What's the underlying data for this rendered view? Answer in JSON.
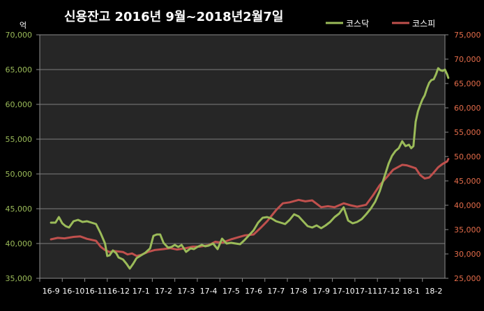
{
  "chart_data": {
    "type": "line",
    "title": "신용잔고  2016년 9월~2018년2월7일",
    "left_axis_unit": "억",
    "left_axis": {
      "min": 35000,
      "max": 70000,
      "ticks": [
        "35,000",
        "40,000",
        "45,000",
        "50,000",
        "55,000",
        "60,000",
        "65,000",
        "70,000"
      ]
    },
    "right_axis": {
      "min": 25000,
      "max": 75000,
      "ticks": [
        "25,000",
        "30,000",
        "35,000",
        "40,000",
        "45,000",
        "50,000",
        "55,000",
        "60,000",
        "65,000",
        "70,000",
        "75,000"
      ]
    },
    "x_labels": [
      "16-9",
      "16-10",
      "16-11",
      "16-12",
      "17-1",
      "17-2",
      "17-3",
      "17-4",
      "17-5",
      "17-6",
      "17-7",
      "17-8",
      "17-9",
      "17-10",
      "17-11",
      "17-12",
      "18-1",
      "18-2"
    ],
    "grid": true,
    "legend_position": "top-right",
    "colors": {
      "kosdaq": "#9bbb59",
      "kospi": "#c0504d",
      "grid": "#7f7f7f",
      "left_tick": "#9bbb59",
      "right_tick": "#e46c4a",
      "x_tick": "#ffffff",
      "plot_bg": "#262626"
    },
    "series": [
      {
        "name": "코스닥",
        "axis": "left",
        "x": [
          0,
          0.2,
          0.35,
          0.5,
          0.65,
          0.8,
          1,
          1.2,
          1.4,
          1.6,
          1.8,
          2,
          2.2,
          2.4,
          2.5,
          2.6,
          2.75,
          2.9,
          3,
          3.2,
          3.35,
          3.5,
          3.65,
          3.8,
          4,
          4.2,
          4.4,
          4.55,
          4.7,
          4.85,
          5,
          5.2,
          5.35,
          5.5,
          5.65,
          5.8,
          6,
          6.2,
          6.35,
          6.5,
          6.7,
          6.85,
          7,
          7.2,
          7.4,
          7.6,
          7.8,
          8,
          8.2,
          8.4,
          8.6,
          8.8,
          9,
          9.2,
          9.4,
          9.6,
          9.8,
          10,
          10.2,
          10.4,
          10.6,
          10.8,
          11,
          11.2,
          11.4,
          11.6,
          11.8,
          12,
          12.2,
          12.4,
          12.6,
          12.8,
          13,
          13.2,
          13.4,
          13.6,
          13.8,
          14,
          14.2,
          14.4,
          14.6,
          14.8,
          15,
          15.15,
          15.3,
          15.45,
          15.6,
          15.75,
          15.9,
          16,
          16.1,
          16.2,
          16.3,
          16.4,
          16.5,
          16.6,
          16.7,
          16.8,
          16.9,
          17,
          17.1,
          17.2,
          17.3,
          17.4,
          17.5,
          17.6,
          17.65
        ],
        "values": [
          43000,
          43000,
          43800,
          42900,
          42500,
          42300,
          43200,
          43400,
          43100,
          43200,
          43000,
          42800,
          41500,
          40000,
          38200,
          38300,
          39000,
          38600,
          38000,
          37700,
          37100,
          36400,
          37100,
          37900,
          38300,
          38700,
          39300,
          41100,
          41300,
          41300,
          40100,
          39400,
          39500,
          39800,
          39500,
          39800,
          38800,
          39300,
          39200,
          39500,
          39800,
          39600,
          39700,
          40000,
          39200,
          40700,
          40000,
          40100,
          40000,
          39900,
          40500,
          41200,
          41900,
          43000,
          43700,
          43800,
          43600,
          43200,
          43000,
          42800,
          43400,
          44200,
          43900,
          43200,
          42500,
          42300,
          42600,
          42200,
          42600,
          43100,
          43800,
          44300,
          45200,
          43300,
          42900,
          43100,
          43500,
          44200,
          45000,
          46000,
          47500,
          49500,
          51500,
          52600,
          53300,
          53700,
          54700,
          54000,
          54200,
          53700,
          54000,
          57500,
          59000,
          59900,
          60700,
          61300,
          62300,
          63100,
          63500,
          63600,
          64300,
          65200,
          64900,
          64800,
          65000,
          64300,
          63800
        ]
      },
      {
        "name": "코스피",
        "axis": "right",
        "x": [
          0,
          0.3,
          0.6,
          1,
          1.3,
          1.6,
          2,
          2.2,
          2.4,
          2.6,
          2.8,
          3,
          3.2,
          3.4,
          3.6,
          3.8,
          4,
          4.3,
          4.6,
          5,
          5.3,
          5.6,
          6,
          6.3,
          6.6,
          7,
          7.3,
          7.6,
          8,
          8.3,
          8.6,
          9,
          9.3,
          9.6,
          10,
          10.3,
          10.6,
          11,
          11.3,
          11.6,
          12,
          12.3,
          12.6,
          13,
          13.3,
          13.6,
          14,
          14.3,
          14.6,
          15,
          15.2,
          15.4,
          15.6,
          15.8,
          16,
          16.2,
          16.4,
          16.6,
          16.8,
          17,
          17.2,
          17.4,
          17.6,
          17.65
        ],
        "values": [
          33000,
          33300,
          33200,
          33500,
          33600,
          33100,
          32700,
          31500,
          30800,
          30400,
          30600,
          30500,
          30400,
          29900,
          30100,
          29600,
          29800,
          30400,
          30800,
          31000,
          31200,
          30900,
          31200,
          31500,
          31500,
          31800,
          32500,
          32300,
          33000,
          33400,
          33800,
          34000,
          35300,
          36700,
          39000,
          40400,
          40600,
          41100,
          40800,
          41000,
          39600,
          39800,
          39600,
          40400,
          40000,
          39700,
          40100,
          42000,
          44100,
          46200,
          47300,
          47800,
          48300,
          48200,
          47900,
          47600,
          46200,
          45500,
          45700,
          46700,
          47800,
          48500,
          49000,
          49500
        ]
      }
    ]
  }
}
